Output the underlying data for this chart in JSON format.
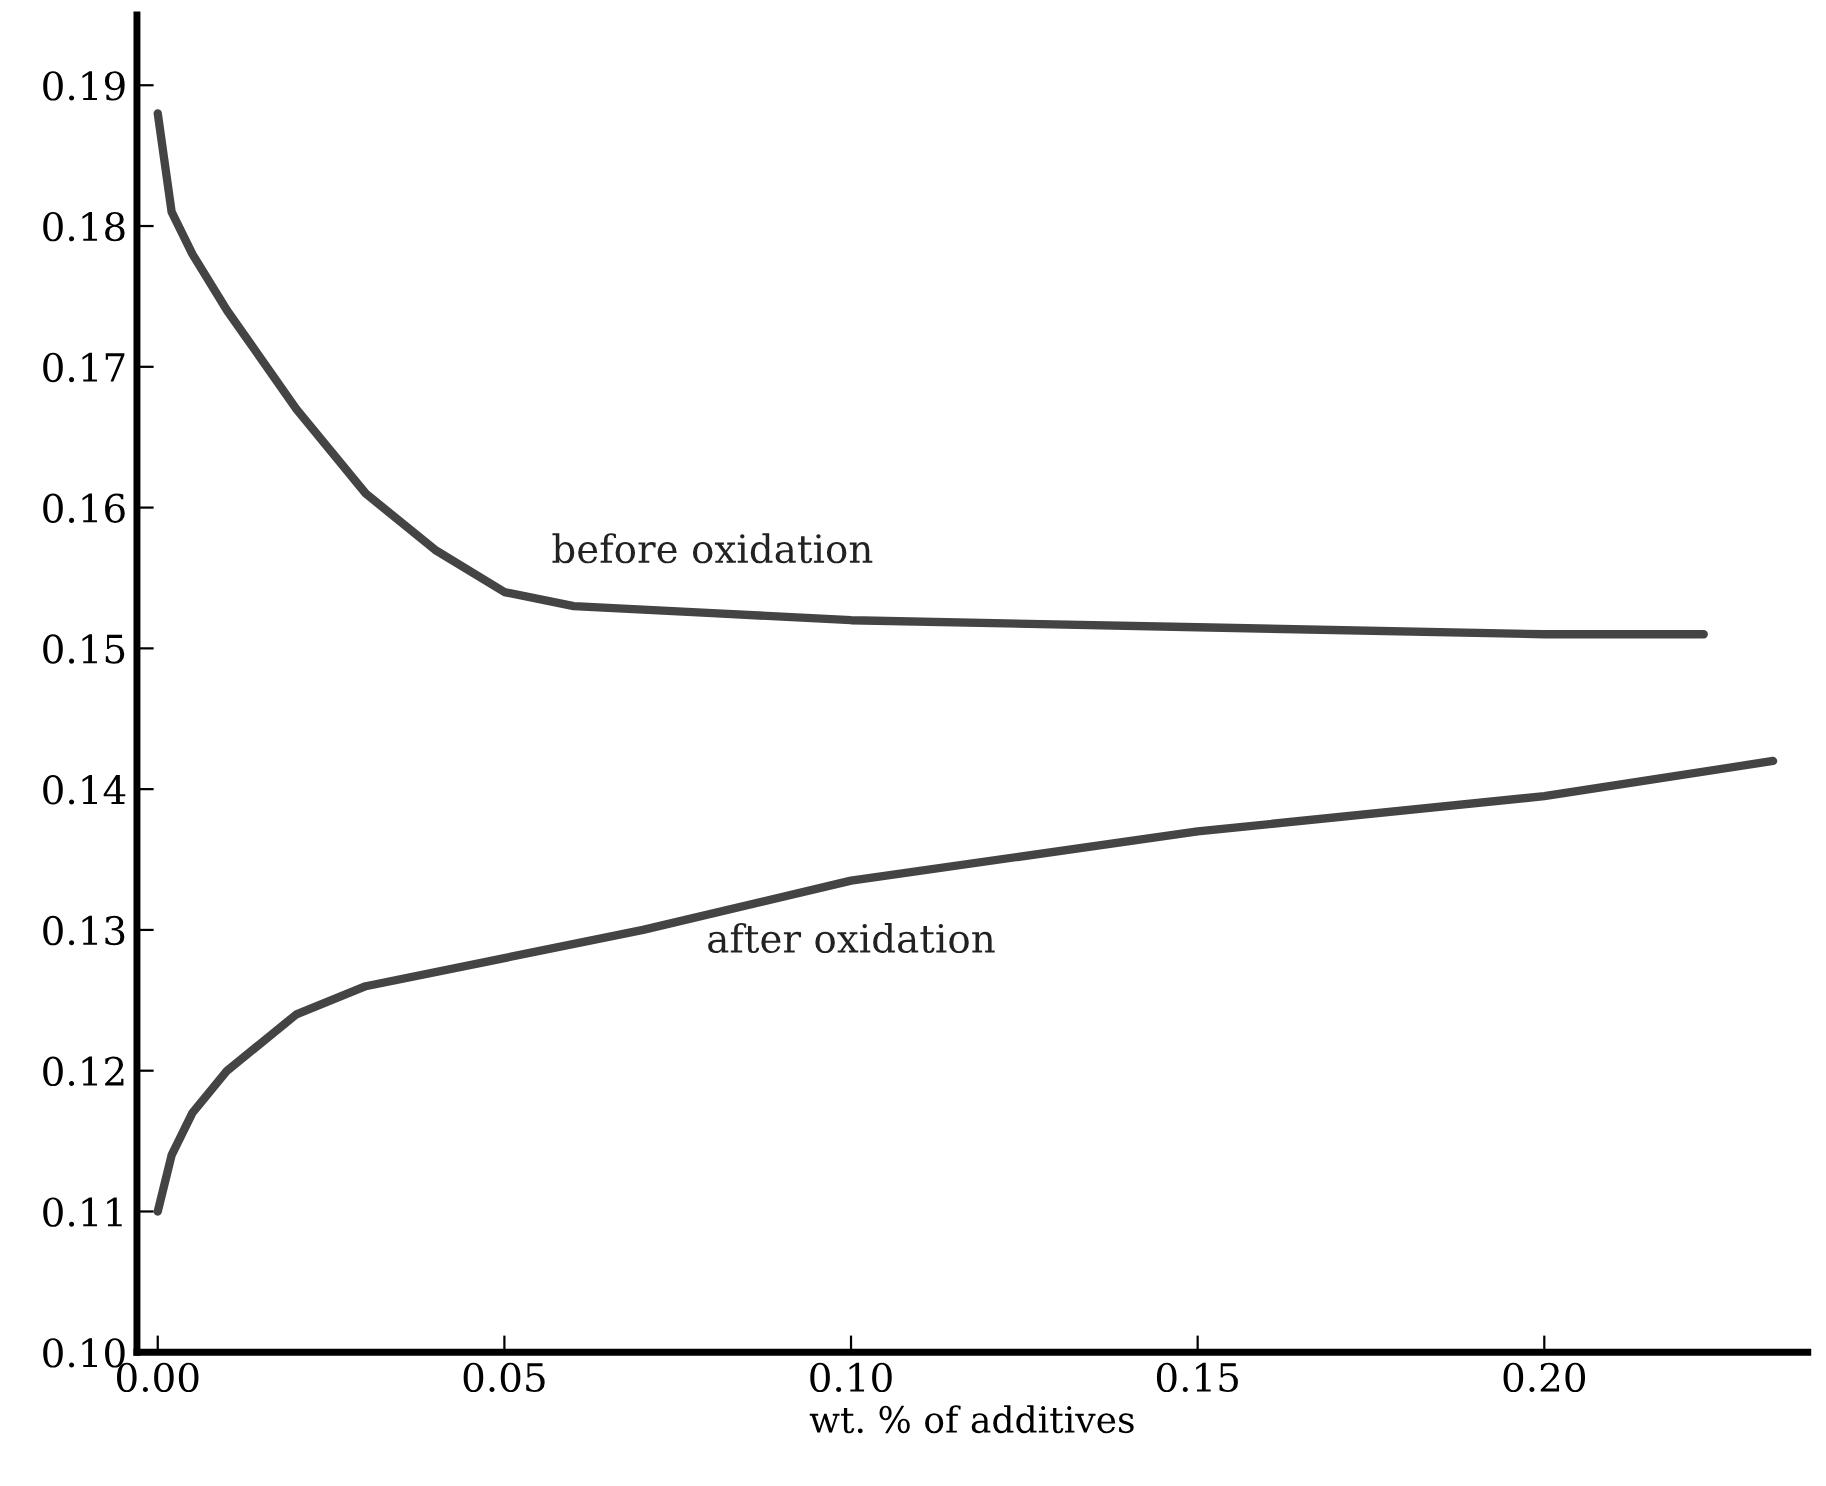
{
  "chart_data": {
    "type": "line",
    "xlabel": "wt. % of additives",
    "xlim": [
      -0.003,
      0.238
    ],
    "ylim": [
      0.1,
      0.195
    ],
    "xticks": [
      {
        "value": 0,
        "label": "0.00"
      },
      {
        "value": 0.05,
        "label": "0.05"
      },
      {
        "value": 0.1,
        "label": "0.10"
      },
      {
        "value": 0.15,
        "label": "0.15"
      },
      {
        "value": 0.2,
        "label": "0.20"
      }
    ],
    "yticks": [
      {
        "value": 0.1,
        "label": "0.10"
      },
      0.11,
      0.12,
      0.13,
      0.14,
      0.15,
      0.16,
      0.17,
      0.18,
      0.19
    ],
    "grid": false,
    "legend": false,
    "marker": "none",
    "line_style": "solid",
    "series": [
      {
        "name": "before oxidation",
        "color": "#444444",
        "x": [
          0,
          0.002,
          0.005,
          0.01,
          0.02,
          0.03,
          0.04,
          0.05,
          0.06,
          0.08,
          0.1,
          0.15,
          0.2,
          0.223
        ],
        "values": [
          0.188,
          0.181,
          0.178,
          0.174,
          0.167,
          0.161,
          0.157,
          0.154,
          0.153,
          0.1525,
          0.152,
          0.1515,
          0.151,
          0.151
        ]
      },
      {
        "name": "after oxidation",
        "color": "#444444",
        "x": [
          0,
          0.002,
          0.005,
          0.01,
          0.02,
          0.03,
          0.05,
          0.07,
          0.1,
          0.15,
          0.2,
          0.233
        ],
        "values": [
          0.11,
          0.114,
          0.117,
          0.12,
          0.124,
          0.126,
          0.128,
          0.13,
          0.1335,
          0.137,
          0.1395,
          0.142
        ]
      }
    ]
  }
}
